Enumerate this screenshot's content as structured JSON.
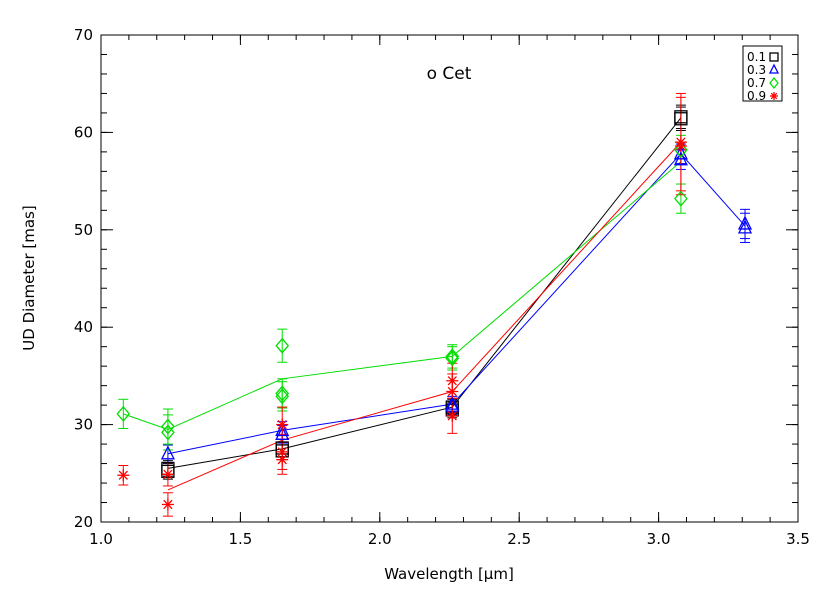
{
  "chart_data": {
    "type": "scatter",
    "title": "o Cet",
    "xlabel": "Wavelength [μm]",
    "ylabel": "UD Diameter [mas]",
    "xlim": [
      1.0,
      3.5
    ],
    "ylim": [
      20,
      70
    ],
    "xticks": [
      "1.0",
      "1.5",
      "2.0",
      "2.5",
      "3.0",
      "3.5"
    ],
    "yticks": [
      "20",
      "30",
      "40",
      "50",
      "60",
      "70"
    ],
    "grid": false,
    "legend_position": "top-right",
    "series": [
      {
        "name": "0.1",
        "marker": "square",
        "color": "#000000",
        "line": [
          [
            1.24,
            25.5
          ],
          [
            1.65,
            27.5
          ],
          [
            2.26,
            31.8
          ],
          [
            3.08,
            61.5
          ]
        ],
        "points": [
          {
            "x": 1.24,
            "y": 25.5,
            "err": 0.8
          },
          {
            "x": 1.24,
            "y": 25.2,
            "err": 0.8
          },
          {
            "x": 1.65,
            "y": 27.6,
            "err": 0.9
          },
          {
            "x": 1.65,
            "y": 27.3,
            "err": 0.9
          },
          {
            "x": 2.26,
            "y": 31.8,
            "err": 0.8
          },
          {
            "x": 2.26,
            "y": 31.5,
            "err": 0.8
          },
          {
            "x": 3.08,
            "y": 61.6,
            "err": 1.2
          },
          {
            "x": 3.08,
            "y": 61.4,
            "err": 1.2
          }
        ]
      },
      {
        "name": "0.3",
        "marker": "triangle",
        "color": "#0000ff",
        "line": [
          [
            1.24,
            27.0
          ],
          [
            1.65,
            29.4
          ],
          [
            2.26,
            32.1
          ],
          [
            3.08,
            57.8
          ],
          [
            3.31,
            50.4
          ]
        ],
        "points": [
          {
            "x": 1.24,
            "y": 27.0,
            "err": 0.9
          },
          {
            "x": 1.65,
            "y": 29.4,
            "err": 0.9
          },
          {
            "x": 1.65,
            "y": 29.0,
            "err": 0.9
          },
          {
            "x": 2.26,
            "y": 32.1,
            "err": 0.8
          },
          {
            "x": 2.26,
            "y": 31.9,
            "err": 0.8
          },
          {
            "x": 3.08,
            "y": 57.8,
            "err": 1.0
          },
          {
            "x": 3.08,
            "y": 57.2,
            "err": 1.0
          },
          {
            "x": 3.31,
            "y": 50.6,
            "err": 1.5
          },
          {
            "x": 3.31,
            "y": 50.2,
            "err": 1.5
          }
        ]
      },
      {
        "name": "0.7",
        "marker": "diamond",
        "color": "#00dd00",
        "line": [
          [
            1.08,
            31.1
          ],
          [
            1.24,
            29.5
          ],
          [
            1.65,
            34.7
          ],
          [
            2.26,
            37.0
          ],
          [
            3.08,
            57.0
          ]
        ],
        "points": [
          {
            "x": 1.08,
            "y": 31.1,
            "err": 1.5
          },
          {
            "x": 1.24,
            "y": 29.8,
            "err": 1.8
          },
          {
            "x": 1.24,
            "y": 29.2,
            "err": 1.8
          },
          {
            "x": 1.65,
            "y": 38.1,
            "err": 1.7
          },
          {
            "x": 1.65,
            "y": 33.2,
            "err": 1.5
          },
          {
            "x": 1.65,
            "y": 32.9,
            "err": 1.5
          },
          {
            "x": 2.26,
            "y": 37.0,
            "err": 1.2
          },
          {
            "x": 2.26,
            "y": 36.8,
            "err": 1.2
          },
          {
            "x": 3.08,
            "y": 58.2,
            "err": 1.5
          },
          {
            "x": 3.08,
            "y": 53.2,
            "err": 1.5
          }
        ]
      },
      {
        "name": "0.9",
        "marker": "asterisk",
        "color": "#ff0000",
        "line": [
          [
            1.24,
            23.3
          ],
          [
            1.65,
            28.4
          ],
          [
            2.26,
            33.4
          ],
          [
            3.08,
            59.0
          ]
        ],
        "points": [
          {
            "x": 1.08,
            "y": 24.8,
            "err": 1.0
          },
          {
            "x": 1.24,
            "y": 24.9,
            "err": 1.2
          },
          {
            "x": 1.24,
            "y": 21.8,
            "err": 1.2
          },
          {
            "x": 1.65,
            "y": 30.0,
            "err": 1.8
          },
          {
            "x": 1.65,
            "y": 27.2,
            "err": 1.8
          },
          {
            "x": 1.65,
            "y": 26.4,
            "err": 1.5
          },
          {
            "x": 2.26,
            "y": 34.5,
            "err": 1.8
          },
          {
            "x": 2.26,
            "y": 33.4,
            "err": 1.8
          },
          {
            "x": 2.26,
            "y": 30.9,
            "err": 1.8
          },
          {
            "x": 3.08,
            "y": 59.0,
            "err": 5.0
          },
          {
            "x": 3.08,
            "y": 58.6,
            "err": 5.0
          }
        ]
      }
    ]
  }
}
